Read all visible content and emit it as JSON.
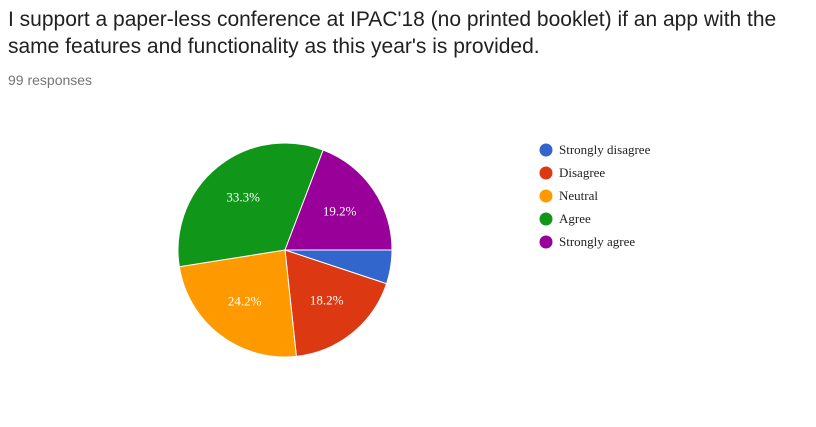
{
  "chart_data": {
    "type": "pie",
    "title": "I support a paper-less conference at IPAC'18 (no printed booklet) if an app with the same features and functionality as this year's is provided.",
    "subtitle": "99 responses",
    "categories": [
      "Strongly disagree",
      "Disagree",
      "Neutral",
      "Agree",
      "Strongly agree"
    ],
    "values": [
      5.1,
      18.2,
      24.2,
      33.3,
      19.2
    ],
    "value_labels": [
      null,
      "18.2%",
      "24.2%",
      "33.3%",
      "19.2%"
    ],
    "colors": [
      "#3366cc",
      "#dc3912",
      "#ff9900",
      "#109618",
      "#990099"
    ],
    "legend": "right"
  }
}
